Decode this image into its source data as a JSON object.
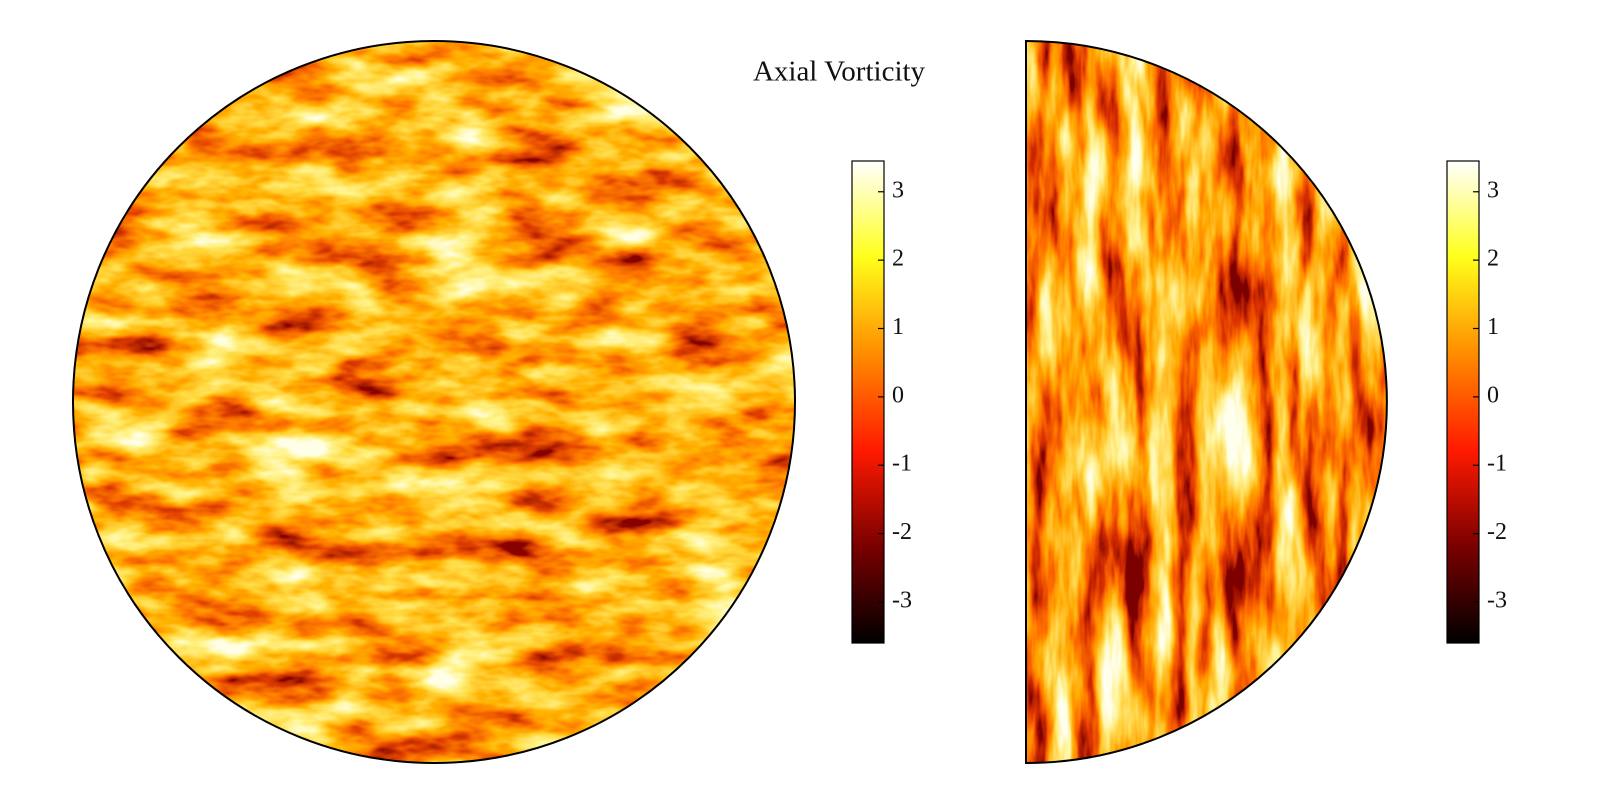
{
  "chart_data": [
    {
      "type": "field",
      "shape": "disk",
      "title": "Axial Vorticity",
      "colormap": [
        "#000000",
        "#7a0000",
        "#ff1a00",
        "#ff8c00",
        "#ffff1a",
        "#ffffff"
      ],
      "ylim": [
        -3.6,
        3.45
      ],
      "yticks": [
        -3,
        -2,
        -1,
        0,
        1,
        2,
        3
      ]
    },
    {
      "type": "field",
      "shape": "half-disk",
      "colormap": [
        "#000000",
        "#7a0000",
        "#ff1a00",
        "#ff8c00",
        "#ffff1a",
        "#ffffff"
      ],
      "ylim": [
        -3.6,
        3.45
      ],
      "yticks": [
        -3,
        -2,
        -1,
        0,
        1,
        2,
        3
      ]
    }
  ]
}
